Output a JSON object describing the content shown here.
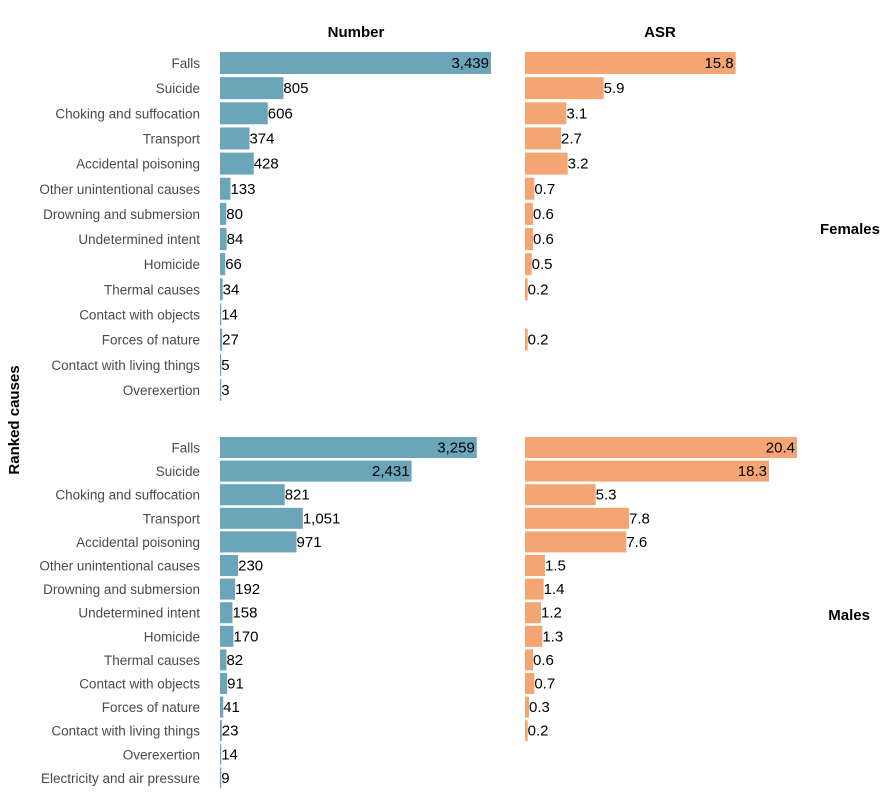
{
  "chart_data": {
    "type": "bar",
    "orientation": "horizontal",
    "ylabel": "Ranked causes",
    "column_headers": [
      "Number",
      "ASR"
    ],
    "colors": {
      "number": "#6aa5b9",
      "asr": "#f5a572"
    },
    "facets": [
      {
        "name": "Females",
        "categories": [
          "Falls",
          "Suicide",
          "Choking and suffocation",
          "Transport",
          "Accidental poisoning",
          "Other unintentional causes",
          "Drowning and submersion",
          "Undetermined intent",
          "Homicide",
          "Thermal causes",
          "Contact with objects",
          "Forces of nature",
          "Contact with living things",
          "Overexertion"
        ],
        "number": [
          3439,
          805,
          606,
          374,
          428,
          133,
          80,
          84,
          66,
          34,
          14,
          27,
          5,
          3
        ],
        "number_labels": [
          "3,439",
          "805",
          "606",
          "374",
          "428",
          "133",
          "80",
          "84",
          "66",
          "34",
          "14",
          "27",
          "5",
          "3"
        ],
        "asr": [
          15.8,
          5.9,
          3.1,
          2.7,
          3.2,
          0.7,
          0.6,
          0.6,
          0.5,
          0.2,
          null,
          0.2,
          null,
          null
        ],
        "asr_labels": [
          "15.8",
          "5.9",
          "3.1",
          "2.7",
          "3.2",
          "0.7",
          "0.6",
          "0.6",
          "0.5",
          "0.2",
          "",
          "0.2",
          "",
          ""
        ]
      },
      {
        "name": "Males",
        "categories": [
          "Falls",
          "Suicide",
          "Choking and suffocation",
          "Transport",
          "Accidental poisoning",
          "Other unintentional causes",
          "Drowning and submersion",
          "Undetermined intent",
          "Homicide",
          "Thermal causes",
          "Contact with objects",
          "Forces of nature",
          "Contact with living things",
          "Overexertion",
          "Electricity and air pressure"
        ],
        "number": [
          3259,
          2431,
          821,
          1051,
          971,
          230,
          192,
          158,
          170,
          82,
          91,
          41,
          23,
          14,
          9
        ],
        "number_labels": [
          "3,259",
          "2,431",
          "821",
          "1,051",
          "971",
          "230",
          "192",
          "158",
          "170",
          "82",
          "91",
          "41",
          "23",
          "14",
          "9"
        ],
        "asr": [
          20.4,
          18.3,
          5.3,
          7.8,
          7.6,
          1.5,
          1.4,
          1.2,
          1.3,
          0.6,
          0.7,
          0.3,
          0.2,
          null,
          null
        ],
        "asr_labels": [
          "20.4",
          "18.3",
          "5.3",
          "7.8",
          "7.6",
          "1.5",
          "1.4",
          "1.2",
          "1.3",
          "0.6",
          "0.7",
          "0.3",
          "0.2",
          "",
          ""
        ]
      }
    ]
  }
}
